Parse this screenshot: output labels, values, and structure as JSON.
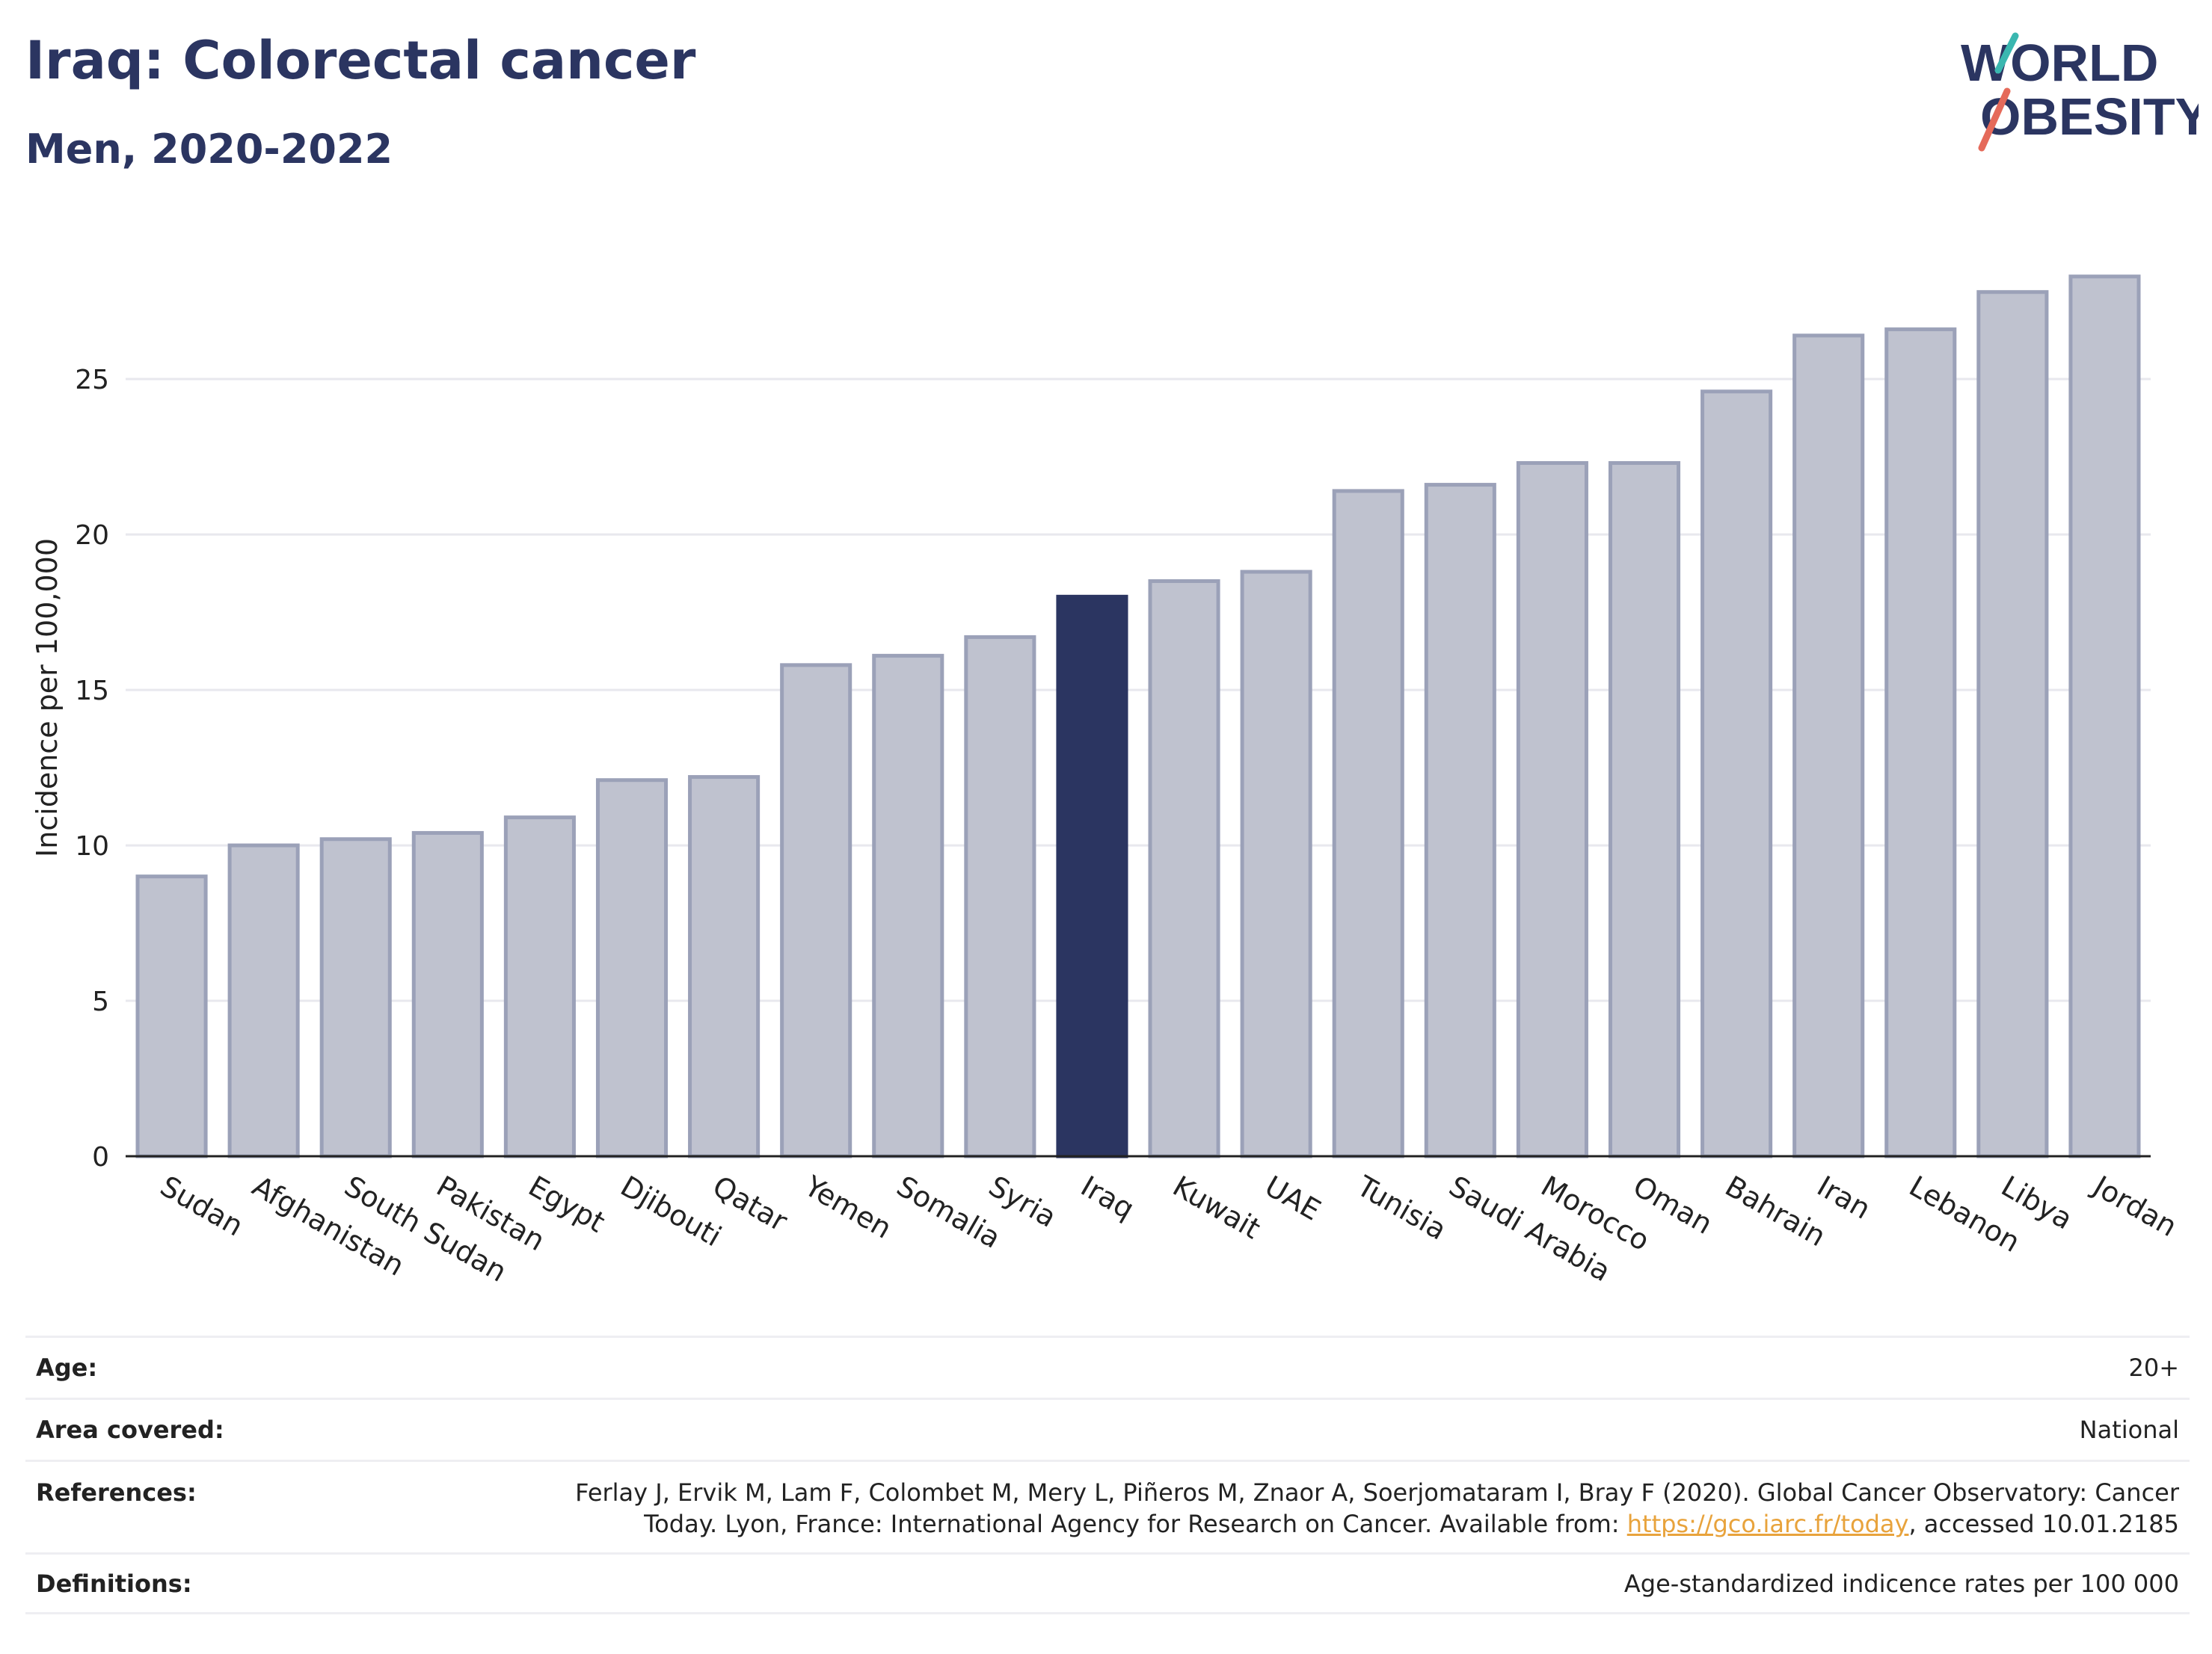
{
  "title": "Iraq: Colorectal cancer",
  "subtitle": "Men, 2020-2022",
  "logo": {
    "line1": "WORLD",
    "line2": "OBESITY",
    "slash_colors": [
      "#3ab7b0",
      "#e56a5a"
    ]
  },
  "colors": {
    "highlight": "#2b3561",
    "bar_fill": "#bfc2cf",
    "bar_edge": "#9ba1b8",
    "grid": "#e8e8ee",
    "text_primary": "#2b3561"
  },
  "chart_data": {
    "type": "bar",
    "categories": [
      "Sudan",
      "Afghanistan",
      "South Sudan",
      "Pakistan",
      "Egypt",
      "Djibouti",
      "Qatar",
      "Yemen",
      "Somalia",
      "Syria",
      "Iraq",
      "Kuwait",
      "UAE",
      "Tunisia",
      "Saudi Arabia",
      "Morocco",
      "Oman",
      "Bahrain",
      "Iran",
      "Lebanon",
      "Libya",
      "Jordan"
    ],
    "values": [
      9.0,
      10.0,
      10.2,
      10.4,
      10.9,
      12.1,
      12.2,
      15.8,
      16.1,
      16.7,
      18.0,
      18.5,
      18.8,
      21.4,
      21.6,
      22.3,
      22.3,
      24.6,
      26.4,
      26.6,
      27.8,
      28.3
    ],
    "highlight": "Iraq",
    "xlabel": "",
    "ylabel": "Incidence per 100,000",
    "ylim": [
      0,
      29.5
    ],
    "yticks": [
      0,
      5,
      10,
      15,
      20,
      25
    ],
    "grid": true
  },
  "meta": [
    {
      "label": "Age:",
      "value": "20+"
    },
    {
      "label": "Area covered:",
      "value": "National"
    },
    {
      "label": "References:",
      "value_before": "Ferlay J, Ervik M, Lam F, Colombet M, Mery L, Piñeros M, Znaor A, Soerjomataram I, Bray F (2020). Global Cancer Observatory: Cancer Today. Lyon, France: International Agency for Research on Cancer. Available from: ",
      "link": "https://gco.iarc.fr/today",
      "value_after": ", accessed 10.01.2185"
    },
    {
      "label": "Definitions:",
      "value": "Age-standardized indicence rates per 100 000"
    }
  ]
}
